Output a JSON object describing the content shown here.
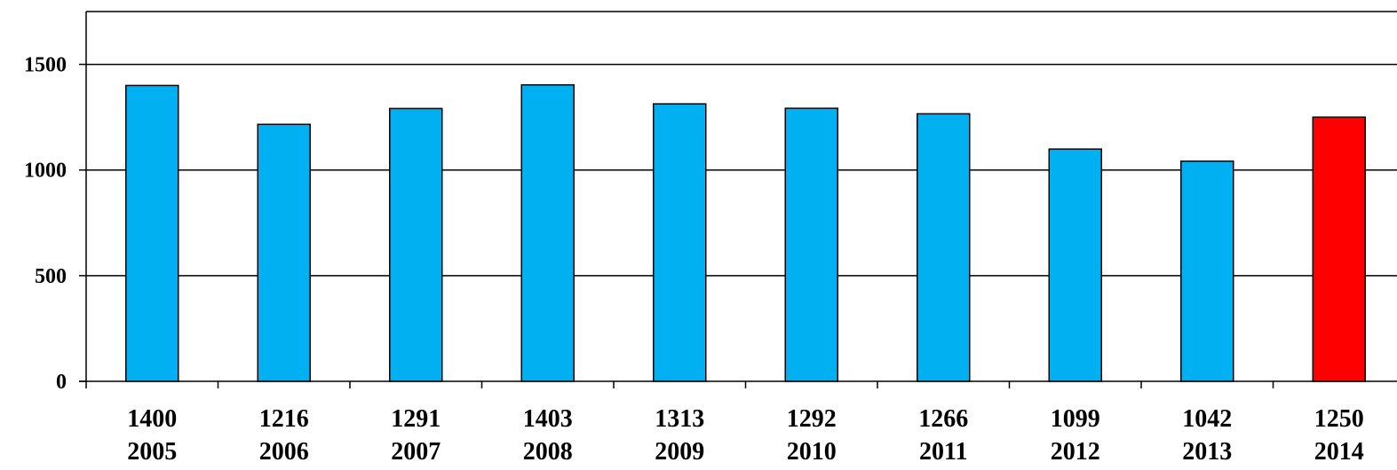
{
  "chart_data": {
    "type": "bar",
    "categories": [
      "2005",
      "2006",
      "2007",
      "2008",
      "2009",
      "2010",
      "2011",
      "2012",
      "2013",
      "2014"
    ],
    "values": [
      1400,
      1216,
      1291,
      1403,
      1313,
      1292,
      1266,
      1099,
      1042,
      1250
    ],
    "value_labels": [
      "1400",
      "1216",
      "1291",
      "1403",
      "1313",
      "1292",
      "1266",
      "1099",
      "1042",
      "1250"
    ],
    "ylim": [
      0,
      1750
    ],
    "y_ticks": [
      0,
      500,
      1000,
      1500
    ],
    "y_tick_labels": [
      "0",
      "500",
      "1000",
      "1500"
    ],
    "grid": true,
    "legend": "none",
    "colors": {
      "default_bar": "#00B0F0",
      "highlight_bar": "#FF0000",
      "highlight_category": "2014",
      "grid": "#000000",
      "axis": "#000000"
    }
  }
}
